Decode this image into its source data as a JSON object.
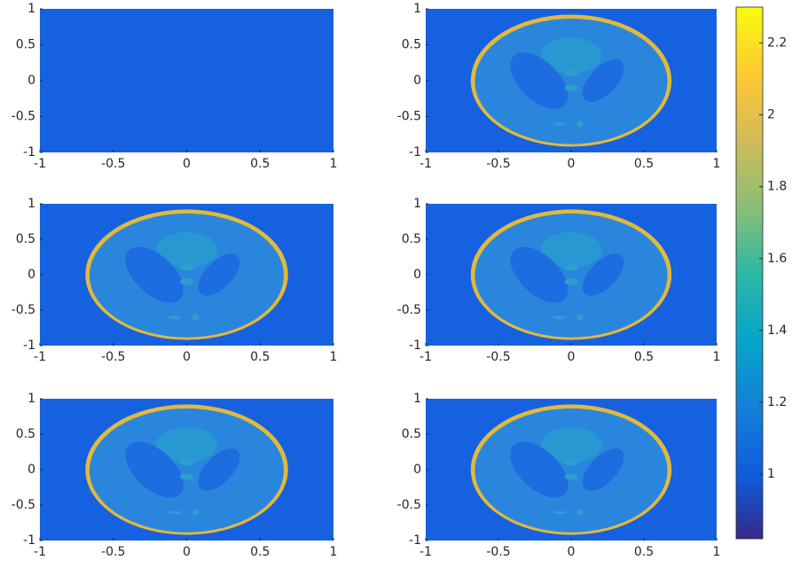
{
  "chart_data": [
    {
      "type": "image",
      "xlim": [
        -1,
        1
      ],
      "ylim": [
        -1,
        1
      ],
      "xticks": [
        -1,
        -0.5,
        0,
        0.5,
        1
      ],
      "yticks": [
        -1,
        -0.5,
        0,
        0.5,
        1
      ]
    },
    {
      "type": "image",
      "xlim": [
        -1,
        1
      ],
      "ylim": [
        -1,
        1
      ],
      "xticks": [
        -1,
        -0.5,
        0,
        0.5,
        1
      ],
      "yticks": [
        -1,
        -0.5,
        0,
        0.5,
        1
      ]
    },
    {
      "type": "image",
      "xlim": [
        -1,
        1
      ],
      "ylim": [
        -1,
        1
      ],
      "xticks": [
        -1,
        -0.5,
        0,
        0.5,
        1
      ],
      "yticks": [
        -1,
        -0.5,
        0,
        0.5,
        1
      ]
    },
    {
      "type": "image",
      "xlim": [
        -1,
        1
      ],
      "ylim": [
        -1,
        1
      ],
      "xticks": [
        -1,
        -0.5,
        0,
        0.5,
        1
      ],
      "yticks": [
        -1,
        -0.5,
        0,
        0.5,
        1
      ]
    },
    {
      "type": "image",
      "xlim": [
        -1,
        1
      ],
      "ylim": [
        -1,
        1
      ],
      "xticks": [
        -1,
        -0.5,
        0,
        0.5,
        1
      ],
      "yticks": [
        -1,
        -0.5,
        0,
        0.5,
        1
      ]
    },
    {
      "type": "image",
      "xlim": [
        -1,
        1
      ],
      "ylim": [
        -1,
        1
      ],
      "xticks": [
        -1,
        -0.5,
        0,
        0.5,
        1
      ],
      "yticks": [
        -1,
        -0.5,
        0,
        0.5,
        1
      ]
    },
    {
      "type": "colorbar",
      "ylim": [
        0.82,
        2.3
      ],
      "yticks": [
        1,
        1.2,
        1.4,
        1.6,
        1.8,
        2,
        2.2
      ]
    }
  ]
}
